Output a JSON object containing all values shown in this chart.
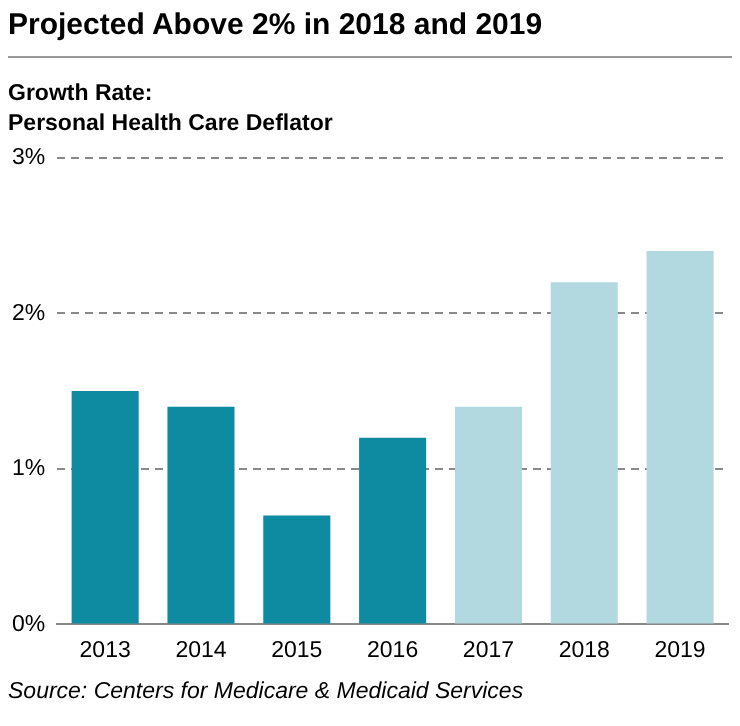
{
  "chart_data": {
    "type": "bar",
    "title": "Projected Above 2% in 2018 and 2019",
    "subtitle": "Growth Rate:\nPersonal Health Care Deflator",
    "categories": [
      "2013",
      "2014",
      "2015",
      "2016",
      "2017",
      "2018",
      "2019"
    ],
    "values": [
      1.5,
      1.4,
      0.7,
      1.2,
      1.4,
      2.2,
      2.4
    ],
    "colors": [
      "#0e8ba0",
      "#0e8ba0",
      "#0e8ba0",
      "#0e8ba0",
      "#b3d9e0",
      "#b3d9e0",
      "#b3d9e0"
    ],
    "ylim": [
      0,
      3
    ],
    "yticks": [
      {
        "value": 0,
        "label": "0%"
      },
      {
        "value": 1,
        "label": "1%"
      },
      {
        "value": 2,
        "label": "2%"
      },
      {
        "value": 3,
        "label": "3%"
      }
    ],
    "grid": "y",
    "annotations": [
      "Source: Centers for Medicare & Medicaid Services"
    ]
  }
}
